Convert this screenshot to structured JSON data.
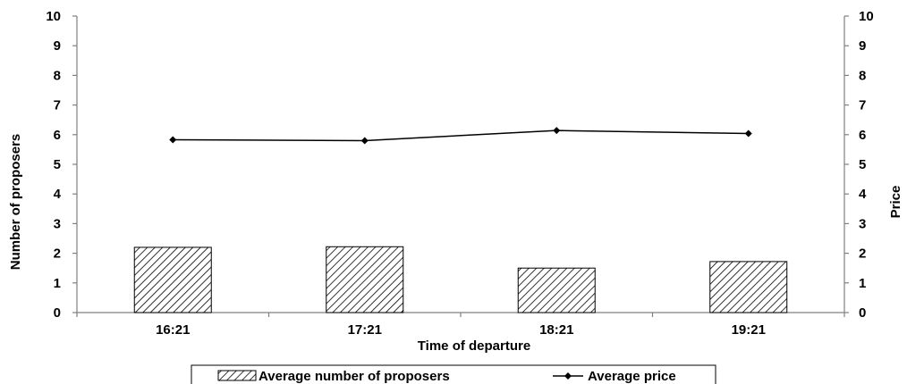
{
  "chart_data": {
    "type": "bar",
    "categories": [
      "16:21",
      "17:21",
      "18:21",
      "19:21"
    ],
    "series": [
      {
        "name": "Average number of proposers",
        "type": "bar",
        "axis": "left",
        "pattern": "diagonal-hatch",
        "values": [
          2.2,
          2.22,
          1.5,
          1.72
        ]
      },
      {
        "name": "Average price",
        "type": "line",
        "axis": "right",
        "marker": "diamond",
        "values": [
          5.83,
          5.8,
          6.14,
          6.04
        ]
      }
    ],
    "xlabel": "Time of departure",
    "ylabel": "Number of proposers",
    "y2label": "Price",
    "ylim": [
      0,
      10
    ],
    "y2lim": [
      0,
      10
    ],
    "yticks": [
      0,
      1,
      2,
      3,
      4,
      5,
      6,
      7,
      8,
      9,
      10
    ],
    "grid": false,
    "legend": "bottom-center",
    "colors": {
      "axis": "#808080",
      "bar_fill": "#ffffff",
      "bar_hatch": "#000000",
      "line": "#000000"
    }
  }
}
